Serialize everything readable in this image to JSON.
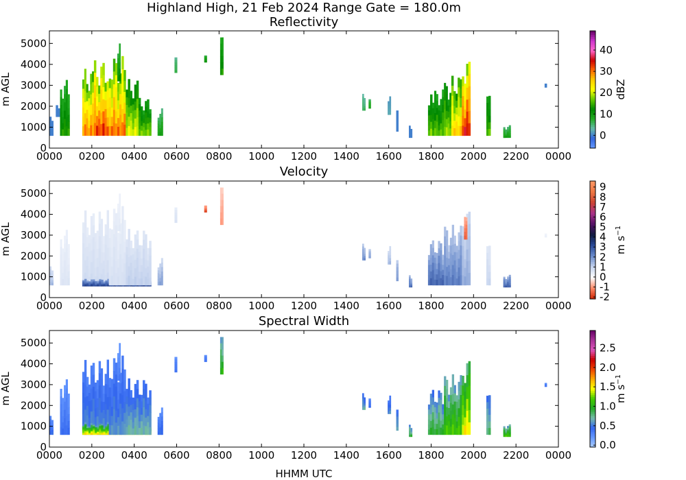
{
  "figure": {
    "suptitle": "Highland High, 21 Feb 2024 Range Gate = 180.0m",
    "xlabel": "HHMM UTC"
  },
  "chart_data": [
    {
      "type": "heatmap",
      "title": "Reflectivity",
      "ylabel": "m AGL",
      "x_ticks": [
        "0000",
        "0200",
        "0400",
        "0600",
        "0800",
        "1000",
        "1200",
        "1400",
        "1600",
        "1800",
        "2000",
        "2200",
        "0000"
      ],
      "xlim_hours": [
        0,
        24
      ],
      "ylim": [
        0,
        5600
      ],
      "y_ticks": [
        0,
        1000,
        2000,
        3000,
        4000,
        5000
      ],
      "colorbar": {
        "label": "dBZ",
        "range": [
          -6,
          49
        ],
        "ticks": [
          0,
          10,
          20,
          30,
          40
        ],
        "colors": [
          "#6699ff",
          "#3366dd",
          "#66bbaa",
          "#22aa22",
          "#008800",
          "#66cc00",
          "#ffff00",
          "#ffcc00",
          "#ff6600",
          "#cc0000",
          "#ff66cc",
          "#cc33cc",
          "#660066"
        ]
      },
      "echoes": [
        {
          "t0": 0.0,
          "t1": 0.18,
          "base": 600,
          "top": 1500,
          "v": 0
        },
        {
          "t0": 0.3,
          "t1": 0.5,
          "base": 1500,
          "top": 2100,
          "v": 0
        },
        {
          "t0": 0.5,
          "t1": 0.95,
          "base": 600,
          "top": 3300,
          "v": 12
        },
        {
          "t0": 1.55,
          "t1": 2.1,
          "base": 600,
          "top": 3800,
          "v": 25
        },
        {
          "t0": 2.1,
          "t1": 2.8,
          "base": 600,
          "top": 4200,
          "v": 28
        },
        {
          "t0": 2.8,
          "t1": 3.6,
          "base": 600,
          "top": 4400,
          "v": 26
        },
        {
          "t0": 3.2,
          "t1": 3.35,
          "base": 3200,
          "top": 5200,
          "v": 10
        },
        {
          "t0": 3.6,
          "t1": 4.2,
          "base": 600,
          "top": 3300,
          "v": 18
        },
        {
          "t0": 4.2,
          "t1": 4.8,
          "base": 600,
          "top": 2400,
          "v": 15
        },
        {
          "t0": 5.1,
          "t1": 5.35,
          "base": 600,
          "top": 1900,
          "v": 8
        },
        {
          "t0": 5.9,
          "t1": 6.02,
          "base": 3600,
          "top": 4400,
          "v": 6
        },
        {
          "t0": 7.3,
          "t1": 7.42,
          "base": 4100,
          "top": 4600,
          "v": 10
        },
        {
          "t0": 8.05,
          "t1": 8.2,
          "base": 3500,
          "top": 5400,
          "v": 12
        },
        {
          "t0": 14.75,
          "t1": 14.9,
          "base": 1800,
          "top": 2600,
          "v": 5
        },
        {
          "t0": 15.05,
          "t1": 15.15,
          "base": 1900,
          "top": 2400,
          "v": 8
        },
        {
          "t0": 15.95,
          "t1": 16.1,
          "base": 1600,
          "top": 2500,
          "v": 2
        },
        {
          "t0": 16.35,
          "t1": 16.45,
          "base": 800,
          "top": 1900,
          "v": 0
        },
        {
          "t0": 16.95,
          "t1": 17.1,
          "base": 500,
          "top": 1100,
          "v": 0
        },
        {
          "t0": 17.85,
          "t1": 18.05,
          "base": 600,
          "top": 2800,
          "v": 15
        },
        {
          "t0": 18.05,
          "t1": 18.6,
          "base": 600,
          "top": 2800,
          "v": 14
        },
        {
          "t0": 18.6,
          "t1": 18.95,
          "base": 600,
          "top": 3200,
          "v": 16
        },
        {
          "t0": 18.95,
          "t1": 19.45,
          "base": 600,
          "top": 3500,
          "v": 22
        },
        {
          "t0": 19.45,
          "t1": 19.85,
          "base": 600,
          "top": 4300,
          "v": 30
        },
        {
          "t0": 20.6,
          "t1": 20.8,
          "base": 600,
          "top": 2600,
          "v": 14
        },
        {
          "t0": 21.4,
          "t1": 21.75,
          "base": 500,
          "top": 1100,
          "v": 8
        },
        {
          "t0": 23.35,
          "t1": 23.45,
          "base": 2900,
          "top": 3100,
          "v": 0
        }
      ]
    },
    {
      "type": "heatmap",
      "title": "Velocity",
      "ylabel": "m $s^{-1}$",
      "ylabel_left": "m AGL",
      "x_ticks": [
        "0000",
        "0200",
        "0400",
        "0600",
        "0800",
        "1000",
        "1200",
        "1400",
        "1600",
        "1800",
        "2000",
        "2200",
        "0000"
      ],
      "xlim_hours": [
        0,
        24
      ],
      "ylim": [
        0,
        5600
      ],
      "y_ticks": [
        0,
        1000,
        2000,
        3000,
        4000,
        5000
      ],
      "colorbar": {
        "label": "m s",
        "label_sup": "−1",
        "range": [
          -2.2,
          9.6
        ],
        "ticks": [
          -2,
          -1,
          0,
          1,
          2,
          3,
          4,
          5,
          6,
          7,
          8,
          9
        ],
        "colors": [
          "#cc2200",
          "#ff8866",
          "#ffffff",
          "#c6d4ee",
          "#6b8ccc",
          "#2a4a9a",
          "#101a40",
          "#551166",
          "#aa3388",
          "#cc4433",
          "#ee7744",
          "#ff9966"
        ]
      },
      "echoes": [
        {
          "t0": 0.0,
          "t1": 0.18,
          "base": 600,
          "top": 1500,
          "v": 1.2
        },
        {
          "t0": 0.5,
          "t1": 0.95,
          "base": 600,
          "top": 3300,
          "v": 0.5
        },
        {
          "t0": 1.55,
          "t1": 2.8,
          "base": 600,
          "top": 4200,
          "v": 0.7
        },
        {
          "t0": 1.55,
          "t1": 4.8,
          "base": 550,
          "top": 900,
          "v": 2.8
        },
        {
          "t0": 2.8,
          "t1": 3.6,
          "base": 600,
          "top": 4400,
          "v": 0.6
        },
        {
          "t0": 3.2,
          "t1": 3.35,
          "base": 3200,
          "top": 5200,
          "v": 0.4
        },
        {
          "t0": 3.6,
          "t1": 4.8,
          "base": 600,
          "top": 3300,
          "v": 0.9
        },
        {
          "t0": 5.1,
          "t1": 5.35,
          "base": 600,
          "top": 1900,
          "v": 1.5
        },
        {
          "t0": 5.9,
          "t1": 6.02,
          "base": 3600,
          "top": 4400,
          "v": 0.6
        },
        {
          "t0": 7.3,
          "t1": 7.42,
          "base": 4100,
          "top": 4600,
          "v": -1.5
        },
        {
          "t0": 8.05,
          "t1": 8.2,
          "base": 3500,
          "top": 5400,
          "v": -0.8
        },
        {
          "t0": 14.75,
          "t1": 14.9,
          "base": 1800,
          "top": 2600,
          "v": 1.8
        },
        {
          "t0": 15.05,
          "t1": 15.15,
          "base": 1900,
          "top": 2400,
          "v": 1.6
        },
        {
          "t0": 15.95,
          "t1": 16.1,
          "base": 1600,
          "top": 2500,
          "v": 1.2
        },
        {
          "t0": 16.35,
          "t1": 16.45,
          "base": 800,
          "top": 1900,
          "v": 1.7
        },
        {
          "t0": 16.95,
          "t1": 17.1,
          "base": 500,
          "top": 1100,
          "v": 2.2
        },
        {
          "t0": 17.85,
          "t1": 18.6,
          "base": 600,
          "top": 2800,
          "v": 2.3
        },
        {
          "t0": 18.6,
          "t1": 19.45,
          "base": 600,
          "top": 3500,
          "v": 2.0
        },
        {
          "t0": 19.45,
          "t1": 19.85,
          "base": 600,
          "top": 4300,
          "v": 1.4
        },
        {
          "t0": 19.55,
          "t1": 19.7,
          "base": 2800,
          "top": 4300,
          "v": -1.3
        },
        {
          "t0": 20.6,
          "t1": 20.8,
          "base": 600,
          "top": 2600,
          "v": 0.8
        },
        {
          "t0": 21.4,
          "t1": 21.75,
          "base": 500,
          "top": 1100,
          "v": 2.4
        },
        {
          "t0": 23.35,
          "t1": 23.45,
          "base": 2900,
          "top": 3100,
          "v": 0.3
        }
      ]
    },
    {
      "type": "heatmap",
      "title": "Spectral Width",
      "ylabel": "m $s^{-1}$",
      "ylabel_left": "m AGL",
      "x_ticks": [
        "0000",
        "0200",
        "0400",
        "0600",
        "0800",
        "1000",
        "1200",
        "1400",
        "1600",
        "1800",
        "2000",
        "2200",
        "0000"
      ],
      "xlim_hours": [
        0,
        24
      ],
      "ylim": [
        0,
        5600
      ],
      "y_ticks": [
        0,
        1000,
        2000,
        3000,
        4000,
        5000
      ],
      "colorbar": {
        "label": "m s",
        "label_sup": "−1",
        "range": [
          -0.05,
          2.95
        ],
        "ticks": [
          "0.0",
          "0.5",
          "1.0",
          "1.5",
          "2.0",
          "2.5"
        ],
        "colors": [
          "#aaccff",
          "#6699ff",
          "#3366ee",
          "#77bbaa",
          "#22aa22",
          "#44cc00",
          "#ffff00",
          "#ffaa00",
          "#ee4400",
          "#cc0000",
          "#dd55bb",
          "#aa3399",
          "#660066"
        ]
      },
      "echoes": [
        {
          "t0": 0.0,
          "t1": 0.18,
          "base": 600,
          "top": 1500,
          "v": 0.4
        },
        {
          "t0": 0.5,
          "t1": 0.95,
          "base": 600,
          "top": 3300,
          "v": 0.35
        },
        {
          "t0": 1.55,
          "t1": 2.8,
          "base": 600,
          "top": 4200,
          "v": 0.5
        },
        {
          "t0": 1.55,
          "t1": 4.8,
          "base": 600,
          "top": 1100,
          "v": 1.3
        },
        {
          "t0": 2.8,
          "t1": 3.6,
          "base": 600,
          "top": 4400,
          "v": 0.5
        },
        {
          "t0": 3.2,
          "t1": 3.35,
          "base": 3200,
          "top": 5200,
          "v": 0.3
        },
        {
          "t0": 3.6,
          "t1": 4.8,
          "base": 600,
          "top": 3300,
          "v": 0.6
        },
        {
          "t0": 5.1,
          "t1": 5.35,
          "base": 600,
          "top": 1900,
          "v": 0.4
        },
        {
          "t0": 5.9,
          "t1": 6.02,
          "base": 3600,
          "top": 4400,
          "v": 0.35
        },
        {
          "t0": 7.3,
          "t1": 7.42,
          "base": 4100,
          "top": 4600,
          "v": 0.35
        },
        {
          "t0": 8.05,
          "t1": 8.2,
          "base": 3500,
          "top": 5400,
          "v": 0.9
        },
        {
          "t0": 14.75,
          "t1": 14.9,
          "base": 1800,
          "top": 2600,
          "v": 0.6
        },
        {
          "t0": 15.05,
          "t1": 15.15,
          "base": 1900,
          "top": 2400,
          "v": 0.4
        },
        {
          "t0": 15.95,
          "t1": 16.1,
          "base": 1600,
          "top": 2500,
          "v": 0.5
        },
        {
          "t0": 16.35,
          "t1": 16.45,
          "base": 800,
          "top": 1900,
          "v": 0.6
        },
        {
          "t0": 16.95,
          "t1": 17.1,
          "base": 500,
          "top": 1100,
          "v": 0.8
        },
        {
          "t0": 17.85,
          "t1": 18.6,
          "base": 600,
          "top": 2800,
          "v": 0.8
        },
        {
          "t0": 18.6,
          "t1": 19.45,
          "base": 600,
          "top": 3500,
          "v": 1.0
        },
        {
          "t0": 19.45,
          "t1": 19.85,
          "base": 600,
          "top": 4300,
          "v": 1.3
        },
        {
          "t0": 20.6,
          "t1": 20.8,
          "base": 600,
          "top": 2600,
          "v": 0.7
        },
        {
          "t0": 21.4,
          "t1": 21.75,
          "base": 500,
          "top": 1100,
          "v": 1.0
        },
        {
          "t0": 23.35,
          "t1": 23.45,
          "base": 2900,
          "top": 3100,
          "v": 0.35
        }
      ]
    }
  ]
}
